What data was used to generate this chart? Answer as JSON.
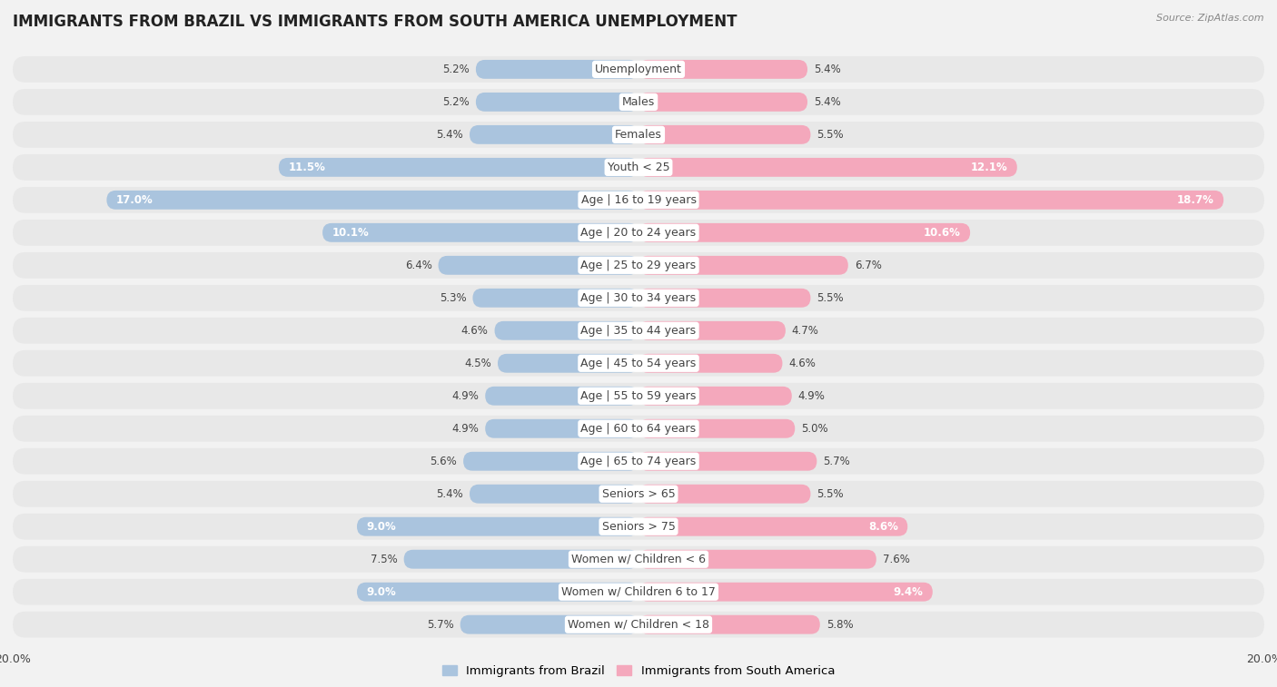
{
  "title": "IMMIGRANTS FROM BRAZIL VS IMMIGRANTS FROM SOUTH AMERICA UNEMPLOYMENT",
  "source": "Source: ZipAtlas.com",
  "categories": [
    "Unemployment",
    "Males",
    "Females",
    "Youth < 25",
    "Age | 16 to 19 years",
    "Age | 20 to 24 years",
    "Age | 25 to 29 years",
    "Age | 30 to 34 years",
    "Age | 35 to 44 years",
    "Age | 45 to 54 years",
    "Age | 55 to 59 years",
    "Age | 60 to 64 years",
    "Age | 65 to 74 years",
    "Seniors > 65",
    "Seniors > 75",
    "Women w/ Children < 6",
    "Women w/ Children 6 to 17",
    "Women w/ Children < 18"
  ],
  "brazil_values": [
    5.2,
    5.2,
    5.4,
    11.5,
    17.0,
    10.1,
    6.4,
    5.3,
    4.6,
    4.5,
    4.9,
    4.9,
    5.6,
    5.4,
    9.0,
    7.5,
    9.0,
    5.7
  ],
  "south_america_values": [
    5.4,
    5.4,
    5.5,
    12.1,
    18.7,
    10.6,
    6.7,
    5.5,
    4.7,
    4.6,
    4.9,
    5.0,
    5.7,
    5.5,
    8.6,
    7.6,
    9.4,
    5.8
  ],
  "brazil_color": "#aac4de",
  "south_america_color": "#f4a8bc",
  "axis_max": 20.0,
  "background_color": "#f2f2f2",
  "row_bg_color": "#e8e8e8",
  "bar_bg_color": "#e0e0e0",
  "title_fontsize": 12,
  "label_fontsize": 9,
  "value_fontsize": 8.5,
  "legend_fontsize": 9.5
}
